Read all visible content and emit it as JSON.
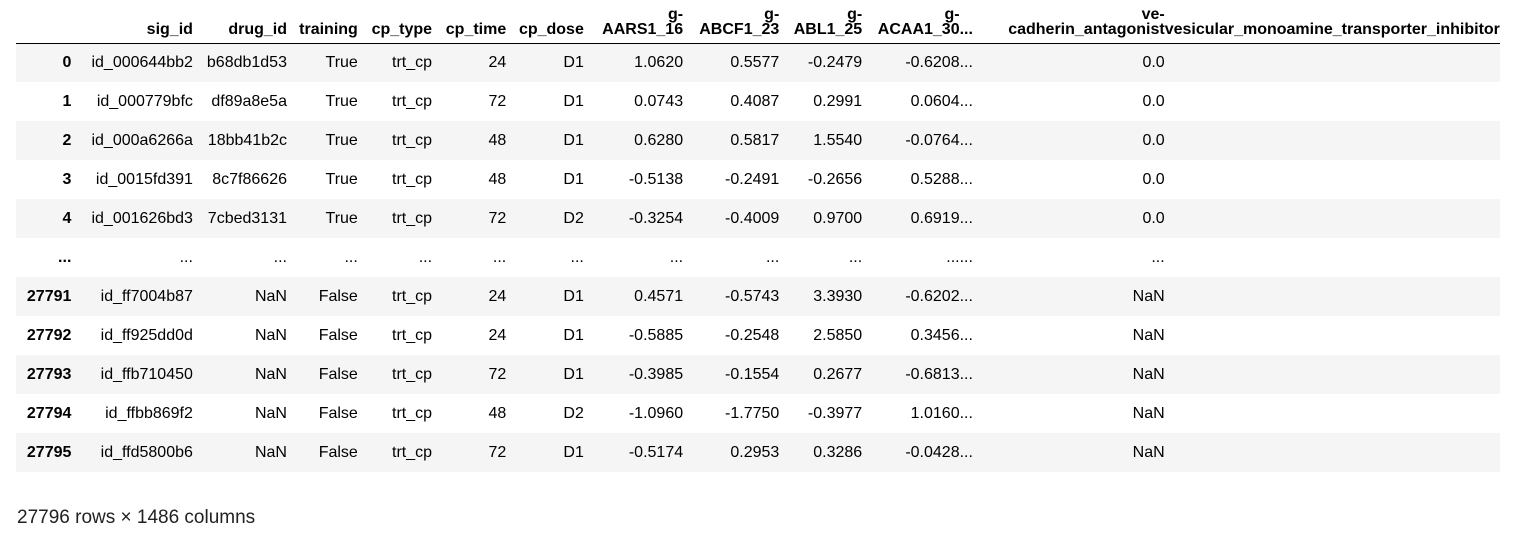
{
  "table": {
    "columns": {
      "index": "",
      "sig_id": "sig_id",
      "drug_id": "drug_id",
      "training": "training",
      "cp_type": "cp_type",
      "cp_time": "cp_time",
      "cp_dose": "cp_dose",
      "g1_top": "g-",
      "g1_bottom": "AARS1_16",
      "g2_top": "g-",
      "g2_bottom": "ABCF1_23",
      "g3_top": "g-",
      "g3_bottom": "ABL1_25",
      "g4_top": "g-",
      "g4_bottom": "ACAA1_30",
      "ellipsis": "...",
      "ve_top": "ve-",
      "ve_bottom": "cadherin_antagonist",
      "vesicular": "vesicular_monoamine_transporter_inhibitor"
    },
    "rows": [
      {
        "index": "0",
        "sig_id": "id_000644bb2",
        "drug_id": "b68db1d53",
        "training": "True",
        "cp_type": "trt_cp",
        "cp_time": "24",
        "cp_dose": "D1",
        "g1": "1.0620",
        "g2": "0.5577",
        "g3": "-0.2479",
        "g4": "-0.6208",
        "ellipsis": "...",
        "ve": "0.0",
        "vesicular": ""
      },
      {
        "index": "1",
        "sig_id": "id_000779bfc",
        "drug_id": "df89a8e5a",
        "training": "True",
        "cp_type": "trt_cp",
        "cp_time": "72",
        "cp_dose": "D1",
        "g1": "0.0743",
        "g2": "0.4087",
        "g3": "0.2991",
        "g4": "0.0604",
        "ellipsis": "...",
        "ve": "0.0",
        "vesicular": ""
      },
      {
        "index": "2",
        "sig_id": "id_000a6266a",
        "drug_id": "18bb41b2c",
        "training": "True",
        "cp_type": "trt_cp",
        "cp_time": "48",
        "cp_dose": "D1",
        "g1": "0.6280",
        "g2": "0.5817",
        "g3": "1.5540",
        "g4": "-0.0764",
        "ellipsis": "...",
        "ve": "0.0",
        "vesicular": ""
      },
      {
        "index": "3",
        "sig_id": "id_0015fd391",
        "drug_id": "8c7f86626",
        "training": "True",
        "cp_type": "trt_cp",
        "cp_time": "48",
        "cp_dose": "D1",
        "g1": "-0.5138",
        "g2": "-0.2491",
        "g3": "-0.2656",
        "g4": "0.5288",
        "ellipsis": "...",
        "ve": "0.0",
        "vesicular": ""
      },
      {
        "index": "4",
        "sig_id": "id_001626bd3",
        "drug_id": "7cbed3131",
        "training": "True",
        "cp_type": "trt_cp",
        "cp_time": "72",
        "cp_dose": "D2",
        "g1": "-0.3254",
        "g2": "-0.4009",
        "g3": "0.9700",
        "g4": "0.6919",
        "ellipsis": "...",
        "ve": "0.0",
        "vesicular": ""
      },
      {
        "index": "...",
        "sig_id": "...",
        "drug_id": "...",
        "training": "...",
        "cp_type": "...",
        "cp_time": "...",
        "cp_dose": "...",
        "g1": "...",
        "g2": "...",
        "g3": "...",
        "g4": "...",
        "ellipsis": "...",
        "ve": "...",
        "vesicular": ""
      },
      {
        "index": "27791",
        "sig_id": "id_ff7004b87",
        "drug_id": "NaN",
        "training": "False",
        "cp_type": "trt_cp",
        "cp_time": "24",
        "cp_dose": "D1",
        "g1": "0.4571",
        "g2": "-0.5743",
        "g3": "3.3930",
        "g4": "-0.6202",
        "ellipsis": "...",
        "ve": "NaN",
        "vesicular": ""
      },
      {
        "index": "27792",
        "sig_id": "id_ff925dd0d",
        "drug_id": "NaN",
        "training": "False",
        "cp_type": "trt_cp",
        "cp_time": "24",
        "cp_dose": "D1",
        "g1": "-0.5885",
        "g2": "-0.2548",
        "g3": "2.5850",
        "g4": "0.3456",
        "ellipsis": "...",
        "ve": "NaN",
        "vesicular": ""
      },
      {
        "index": "27793",
        "sig_id": "id_ffb710450",
        "drug_id": "NaN",
        "training": "False",
        "cp_type": "trt_cp",
        "cp_time": "72",
        "cp_dose": "D1",
        "g1": "-0.3985",
        "g2": "-0.1554",
        "g3": "0.2677",
        "g4": "-0.6813",
        "ellipsis": "...",
        "ve": "NaN",
        "vesicular": ""
      },
      {
        "index": "27794",
        "sig_id": "id_ffbb869f2",
        "drug_id": "NaN",
        "training": "False",
        "cp_type": "trt_cp",
        "cp_time": "48",
        "cp_dose": "D2",
        "g1": "-1.0960",
        "g2": "-1.7750",
        "g3": "-0.3977",
        "g4": "1.0160",
        "ellipsis": "...",
        "ve": "NaN",
        "vesicular": ""
      },
      {
        "index": "27795",
        "sig_id": "id_ffd5800b6",
        "drug_id": "NaN",
        "training": "False",
        "cp_type": "trt_cp",
        "cp_time": "72",
        "cp_dose": "D1",
        "g1": "-0.5174",
        "g2": "0.2953",
        "g3": "0.3286",
        "g4": "-0.0428",
        "ellipsis": "...",
        "ve": "NaN",
        "vesicular": ""
      }
    ]
  },
  "footer": {
    "shape": "27796 rows × 1486 columns"
  }
}
